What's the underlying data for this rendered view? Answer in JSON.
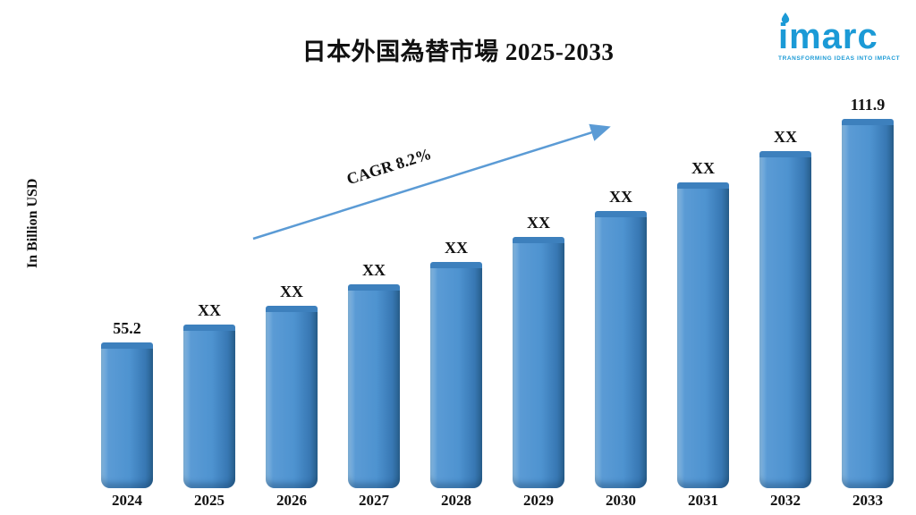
{
  "header": {
    "logo": {
      "word": "imarc",
      "tagline": "TRANSFORMING IDEAS INTO IMPACT",
      "accent_color": "#1b9ad6"
    }
  },
  "chart_data": {
    "type": "bar",
    "title": "日本外国為替市場 2025-2033",
    "ylabel": "In Billion USD",
    "xlabel": "",
    "categories": [
      "2024",
      "2025",
      "2026",
      "2027",
      "2028",
      "2029",
      "2030",
      "2031",
      "2032",
      "2033"
    ],
    "values": [
      55.2,
      59.7,
      64.6,
      69.9,
      75.7,
      81.9,
      88.6,
      95.8,
      103.7,
      111.9
    ],
    "labels": [
      "55.2",
      "XX",
      "XX",
      "XX",
      "XX",
      "XX",
      "XX",
      "XX",
      "XX",
      "111.9"
    ],
    "annotation": "CAGR 8.2%",
    "bar_color": "#5b9bd5",
    "arrow_color": "#5b9bd5",
    "grid": false,
    "legend": "none",
    "ylim": [
      0,
      120
    ]
  }
}
